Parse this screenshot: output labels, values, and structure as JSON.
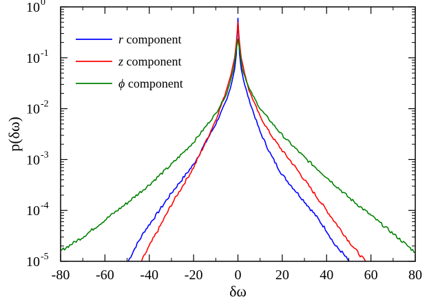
{
  "chart_data": {
    "type": "line",
    "xlabel": "δω",
    "ylabel": "p(δω)",
    "xlim": [
      -80,
      80
    ],
    "ylim": [
      1e-05,
      1
    ],
    "y_scale": "log",
    "grid": false,
    "legend_placement": "top-left",
    "x_ticks": [
      {
        "value": -80,
        "label": "-80"
      },
      {
        "value": -60,
        "label": "-60"
      },
      {
        "value": -40,
        "label": "-40"
      },
      {
        "value": -20,
        "label": "-20"
      },
      {
        "value": 0,
        "label": "0"
      },
      {
        "value": 20,
        "label": "20"
      },
      {
        "value": 40,
        "label": "40"
      },
      {
        "value": 60,
        "label": "60"
      },
      {
        "value": 80,
        "label": "80"
      }
    ],
    "y_ticks": [
      {
        "value": 1e-05,
        "base": "10",
        "exp": "-5"
      },
      {
        "value": 0.0001,
        "base": "10",
        "exp": "-4"
      },
      {
        "value": 0.001,
        "base": "10",
        "exp": "-3"
      },
      {
        "value": 0.01,
        "base": "10",
        "exp": "-2"
      },
      {
        "value": 0.1,
        "base": "10",
        "exp": "-1"
      },
      {
        "value": 1,
        "base": "10",
        "exp": "0"
      }
    ],
    "series": [
      {
        "name": "r component",
        "legend_var": "r",
        "legend_rest": " component",
        "color": "#0000ff",
        "points": [
          [
            -49.5,
            1e-05
          ],
          [
            -46,
            2e-05
          ],
          [
            -42,
            4e-05
          ],
          [
            -37,
            8e-05
          ],
          [
            -30,
            0.00022
          ],
          [
            -20,
            0.0008
          ],
          [
            -15,
            0.002
          ],
          [
            -10,
            0.005
          ],
          [
            -5,
            0.015
          ],
          [
            -3,
            0.03
          ],
          [
            -1.5,
            0.06
          ],
          [
            -0.7,
            0.12
          ],
          [
            0,
            0.6
          ],
          [
            0.7,
            0.12
          ],
          [
            1.5,
            0.06
          ],
          [
            3,
            0.03
          ],
          [
            5,
            0.015
          ],
          [
            10,
            0.0035
          ],
          [
            15,
            0.0012
          ],
          [
            20,
            0.0005
          ],
          [
            30,
            0.00015
          ],
          [
            35,
            8e-05
          ],
          [
            40,
            4e-05
          ],
          [
            44,
            2e-05
          ],
          [
            47,
            1.5e-05
          ],
          [
            50,
            1e-05
          ]
        ]
      },
      {
        "name": "z component",
        "legend_var": "z",
        "legend_rest": " component",
        "color": "#ff0000",
        "points": [
          [
            -43.5,
            1e-05
          ],
          [
            -40,
            2e-05
          ],
          [
            -35,
            5e-05
          ],
          [
            -30,
            0.00013
          ],
          [
            -25,
            0.0003
          ],
          [
            -20,
            0.0007
          ],
          [
            -15,
            0.002
          ],
          [
            -10,
            0.006
          ],
          [
            -6,
            0.018
          ],
          [
            -3,
            0.05
          ],
          [
            -1.5,
            0.1
          ],
          [
            -0.7,
            0.2
          ],
          [
            0,
            0.5
          ],
          [
            0.7,
            0.2
          ],
          [
            1.5,
            0.1
          ],
          [
            3,
            0.05
          ],
          [
            5,
            0.023
          ],
          [
            10,
            0.007
          ],
          [
            15,
            0.003
          ],
          [
            20,
            0.0015
          ],
          [
            25,
            0.0008
          ],
          [
            30,
            0.0004
          ],
          [
            35,
            0.0002
          ],
          [
            40,
            0.0001
          ],
          [
            45,
            5e-05
          ],
          [
            50,
            2.5e-05
          ],
          [
            54,
            1.5e-05
          ],
          [
            57.5,
            1e-05
          ]
        ]
      },
      {
        "name": "ϕ component",
        "legend_var": "ϕ",
        "legend_rest": " component",
        "color": "#008000",
        "points": [
          [
            -80,
            1.6e-05
          ],
          [
            -70,
            3e-05
          ],
          [
            -60,
            6.5e-05
          ],
          [
            -50,
            0.00014
          ],
          [
            -40,
            0.00032
          ],
          [
            -30,
            0.0008
          ],
          [
            -20,
            0.0022
          ],
          [
            -10,
            0.008
          ],
          [
            -5,
            0.02
          ],
          [
            -2,
            0.06
          ],
          [
            -0.7,
            0.15
          ],
          [
            0,
            0.23
          ],
          [
            0.7,
            0.15
          ],
          [
            2,
            0.06
          ],
          [
            5,
            0.025
          ],
          [
            10,
            0.01
          ],
          [
            20,
            0.003
          ],
          [
            30,
            0.0011
          ],
          [
            40,
            0.00045
          ],
          [
            50,
            0.00018
          ],
          [
            60,
            8e-05
          ],
          [
            70,
            3.5e-05
          ],
          [
            80,
            1.5e-05
          ]
        ]
      }
    ]
  }
}
